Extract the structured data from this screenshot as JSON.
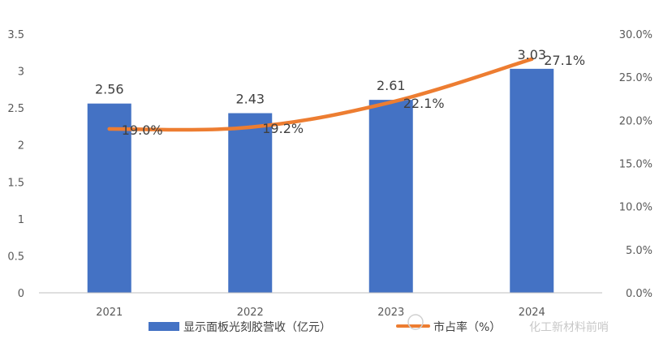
{
  "chart_data": {
    "type": "bar",
    "categories": [
      "2021",
      "2022",
      "2023",
      "2024"
    ],
    "series": [
      {
        "name": "显示面板光刻胶营收（亿元）",
        "type": "bar",
        "axis": "left",
        "values": [
          2.56,
          2.43,
          2.61,
          3.03
        ],
        "labels": [
          "2.56",
          "2.43",
          "2.61",
          "3.03"
        ],
        "color": "#4472C4"
      },
      {
        "name": "市占率（%）",
        "type": "line",
        "axis": "right",
        "values": [
          19.0,
          19.2,
          22.1,
          27.1
        ],
        "labels": [
          "19.0%",
          "19.2%",
          "22.1%",
          "27.1%"
        ],
        "color": "#ED7D31"
      }
    ],
    "y_left": {
      "range": [
        0,
        3.5
      ],
      "ticks": [
        0,
        0.5,
        1,
        1.5,
        2,
        2.5,
        3,
        3.5
      ],
      "tick_labels": [
        "0",
        "0.5",
        "1",
        "1.5",
        "2",
        "2.5",
        "3",
        "3.5"
      ]
    },
    "y_right": {
      "range": [
        0,
        30
      ],
      "ticks": [
        0,
        5,
        10,
        15,
        20,
        25,
        30
      ],
      "tick_labels": [
        "0.0%",
        "5.0%",
        "10.0%",
        "15.0%",
        "20.0%",
        "25.0%",
        "30.0%"
      ]
    },
    "grid": false,
    "legend": "bottom-center",
    "watermark": "化工新材料前哨"
  }
}
